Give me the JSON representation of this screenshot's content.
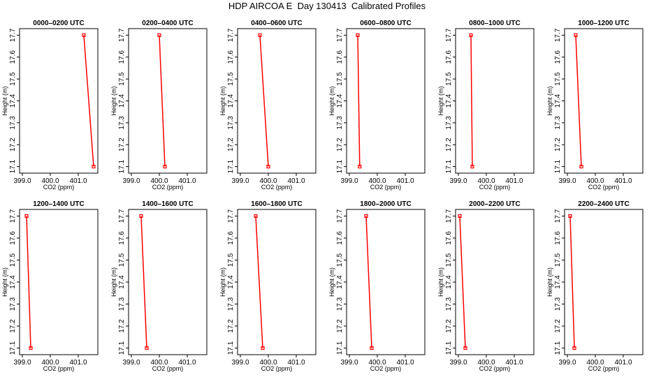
{
  "title": "HDP AIRCOA E  Day 130413  Calibrated Profiles",
  "colors": {
    "line": "#ff0000",
    "axis": "#000000"
  },
  "chart_data": {
    "type": "line",
    "xlabel": "CO2 (ppm)",
    "ylabel": "Height (m)",
    "xlim": [
      398.9,
      401.7
    ],
    "ylim": [
      17.07,
      17.73
    ],
    "xticks": [
      "399.0",
      "400.0",
      "401.0"
    ],
    "xtick_values": [
      399.0,
      400.0,
      401.0
    ],
    "yticks": [
      "17.1",
      "17.2",
      "17.3",
      "17.4",
      "17.5",
      "17.6",
      "17.7"
    ],
    "ytick_values": [
      17.1,
      17.2,
      17.3,
      17.4,
      17.5,
      17.6,
      17.7
    ],
    "panels": [
      {
        "title": "0000–0200 UTC",
        "x": [
          401.2,
          401.55
        ],
        "y": [
          17.7,
          17.1
        ]
      },
      {
        "title": "0200–0400 UTC",
        "x": [
          400.0,
          400.2
        ],
        "y": [
          17.7,
          17.1
        ]
      },
      {
        "title": "0400–0600 UTC",
        "x": [
          399.7,
          400.0
        ],
        "y": [
          17.7,
          17.1
        ]
      },
      {
        "title": "0600–0800 UTC",
        "x": [
          399.3,
          399.37
        ],
        "y": [
          17.7,
          17.1
        ]
      },
      {
        "title": "0800–1000 UTC",
        "x": [
          399.45,
          399.5
        ],
        "y": [
          17.7,
          17.1
        ]
      },
      {
        "title": "1000–1200 UTC",
        "x": [
          399.3,
          399.5
        ],
        "y": [
          17.7,
          17.1
        ]
      },
      {
        "title": "1200–1400 UTC",
        "x": [
          399.15,
          399.3
        ],
        "y": [
          17.7,
          17.1
        ]
      },
      {
        "title": "1400–1600 UTC",
        "x": [
          399.35,
          399.55
        ],
        "y": [
          17.7,
          17.1
        ]
      },
      {
        "title": "1600–1800 UTC",
        "x": [
          399.55,
          399.8
        ],
        "y": [
          17.7,
          17.1
        ]
      },
      {
        "title": "1800–2000 UTC",
        "x": [
          399.6,
          399.8
        ],
        "y": [
          17.7,
          17.1
        ]
      },
      {
        "title": "2000–2200 UTC",
        "x": [
          399.05,
          399.25
        ],
        "y": [
          17.7,
          17.1
        ]
      },
      {
        "title": "2200–2400 UTC",
        "x": [
          399.1,
          399.25
        ],
        "y": [
          17.7,
          17.1
        ]
      }
    ]
  }
}
